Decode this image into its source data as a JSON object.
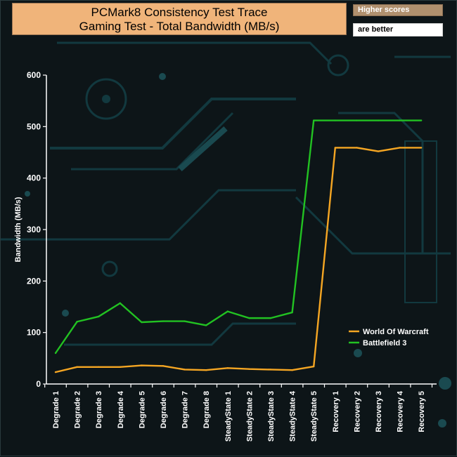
{
  "chart_data": {
    "type": "line",
    "title": "PCMark8 Consistency Test Trace",
    "subtitle": "Gaming Test - Total Bandwidth (MB/s)",
    "ylabel": "Bandwidth (MB/s)",
    "xlabel": "",
    "ylim": [
      0,
      600
    ],
    "yticks": [
      0,
      100,
      200,
      300,
      400,
      500,
      600
    ],
    "grid": false,
    "legend_position": "lower-right",
    "notes": [
      "Higher scores",
      "are better"
    ],
    "categories": [
      "Degrade 1",
      "Degrade 2",
      "Degrade 3",
      "Degrade 4",
      "Degrade 5",
      "Degrade 6",
      "Degrade 7",
      "Degrade 8",
      "SteadyState 1",
      "SteadyState 2",
      "SteadyState 3",
      "SteadyState 4",
      "SteadyState 5",
      "Recovery 1",
      "Recovery 2",
      "Recovery 3",
      "Recovery 4",
      "Recovery 5"
    ],
    "series": [
      {
        "name": "World Of Warcraft",
        "color": "#f5a623",
        "values": [
          23,
          33,
          33,
          33,
          36,
          35,
          28,
          27,
          31,
          29,
          28,
          27,
          34,
          459,
          459,
          452,
          459,
          459
        ]
      },
      {
        "name": "Battlefield 3",
        "color": "#22c222",
        "values": [
          60,
          121,
          131,
          157,
          120,
          122,
          122,
          114,
          141,
          128,
          128,
          139,
          512,
          512,
          512,
          512,
          512,
          512
        ]
      }
    ]
  },
  "colors": {
    "background": "#0d1518",
    "title_box": "#f0b47a",
    "axis": "#ffffff"
  }
}
